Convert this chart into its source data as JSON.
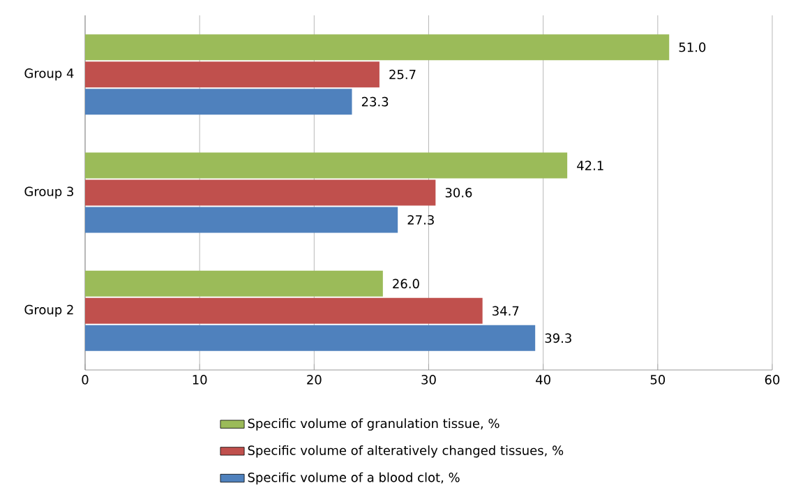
{
  "chart_data": {
    "type": "bar",
    "orientation": "horizontal",
    "categories": [
      "Group 4",
      "Group 3",
      "Group 2"
    ],
    "series": [
      {
        "name": "Specific volume of granulation tissue, %",
        "color": "#9bbb59",
        "values": [
          51.0,
          42.1,
          26.0
        ],
        "value_labels": [
          "51.0",
          "42.1",
          "26.0"
        ]
      },
      {
        "name": "Specific volume of alteratively changed tissues, %",
        "color": "#c0504d",
        "values": [
          25.7,
          30.6,
          34.7
        ],
        "value_labels": [
          "25.7",
          "30.6",
          "34.7"
        ]
      },
      {
        "name": "Specific volume of a blood clot, %",
        "color": "#4f81bd",
        "values": [
          23.3,
          27.3,
          39.3
        ],
        "value_labels": [
          "23.3",
          "27.3",
          "39.3"
        ]
      }
    ],
    "xlim": [
      0,
      60
    ],
    "xticks": [
      0,
      10,
      20,
      30,
      40,
      50,
      60
    ],
    "grid": "x",
    "legend": "bottom"
  }
}
